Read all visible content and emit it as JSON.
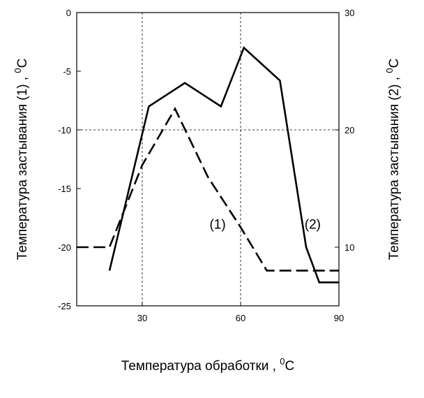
{
  "chart_data": {
    "type": "line",
    "x_axis": {
      "label": "Температура  обработки  ,",
      "unit": "C",
      "unit_sup": "0",
      "range": [
        10,
        90
      ],
      "ticks": [
        30,
        60,
        90
      ]
    },
    "y_left": {
      "label": "Температура застывания (1)  ,",
      "unit": "C",
      "unit_sup": "0",
      "range": [
        -25,
        0
      ],
      "ticks": [
        0,
        -5,
        -10,
        -15,
        -20,
        -25
      ]
    },
    "y_right": {
      "label": "Температура застывания (2)  ,",
      "unit": "C",
      "unit_sup": "0",
      "range": [
        5,
        30
      ],
      "ticks": [
        30,
        20,
        10
      ]
    },
    "grid": {
      "x": [
        30,
        60
      ],
      "y": [
        -10
      ]
    },
    "series": [
      {
        "name": "(1)",
        "axis": "left",
        "style": "dashed",
        "x": [
          10,
          20,
          30,
          40,
          50,
          60,
          68,
          90
        ],
        "y": [
          -20,
          -20,
          -13,
          -8.2,
          -14,
          -18.3,
          -22,
          -22
        ]
      },
      {
        "name": "(2)",
        "axis": "right",
        "style": "solid",
        "x": [
          20,
          32,
          43,
          54,
          61,
          72,
          80,
          84,
          90
        ],
        "y": [
          8,
          22,
          24,
          22,
          27,
          24.2,
          10,
          7,
          7
        ]
      }
    ],
    "annotations": [
      {
        "text": "(1)",
        "x": 53,
        "y_left": -18
      },
      {
        "text": "(2)",
        "x": 82,
        "y_left": -18
      }
    ]
  }
}
